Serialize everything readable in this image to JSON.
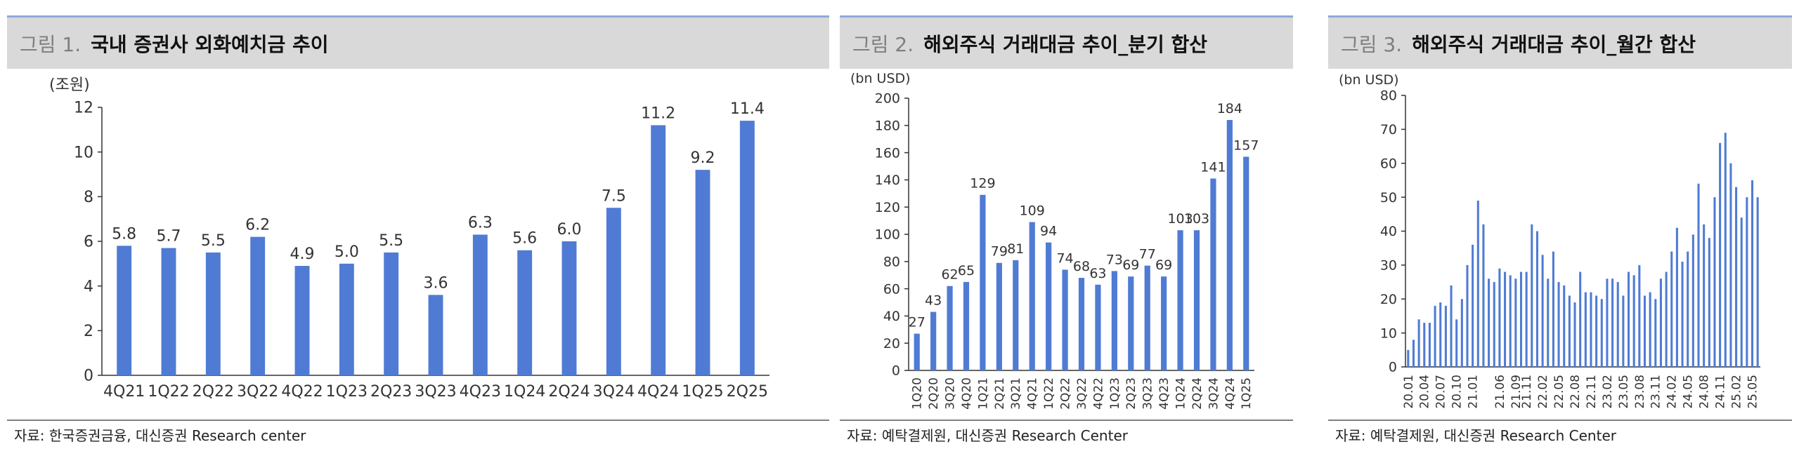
{
  "colors": {
    "bar": "#4f7bd4",
    "axis": "#333333"
  },
  "chart_data": [
    {
      "type": "bar",
      "fig_label": "그림 1.",
      "title": "국내 증권사 외화예치금 추이",
      "unit_label": "(조원)",
      "categories": [
        "4Q21",
        "1Q22",
        "2Q22",
        "3Q22",
        "4Q22",
        "1Q23",
        "2Q23",
        "3Q23",
        "4Q23",
        "1Q24",
        "2Q24",
        "3Q24",
        "4Q24",
        "1Q25",
        "2Q25"
      ],
      "tick_labels": [
        "4Q21",
        "1Q22",
        "2Q22",
        "3Q22",
        "4Q22",
        "1Q23",
        "2Q23",
        "3Q23",
        "4Q23",
        "1Q24",
        "2Q24",
        "3Q24",
        "4Q24",
        "1Q25",
        "2Q25"
      ],
      "values": [
        5.8,
        5.7,
        5.5,
        6.2,
        4.9,
        5.0,
        5.5,
        3.6,
        6.3,
        5.6,
        6.0,
        7.5,
        11.2,
        9.2,
        11.4
      ],
      "data_labels": [
        "5.8",
        "5.7",
        "5.5",
        "6.2",
        "4.9",
        "5.0",
        "5.5",
        "3.6",
        "6.3",
        "5.6",
        "6.0",
        "7.5",
        "11.2",
        "9.2",
        "11.4"
      ],
      "ylim": [
        0,
        12
      ],
      "yticks": [
        "0",
        "2",
        "4",
        "6",
        "8",
        "10",
        "12"
      ],
      "source": "자료: 한국증권금융, 대신증권 Research center"
    },
    {
      "type": "bar",
      "fig_label": "그림 2.",
      "title": "해외주식 거래대금 추이_분기 합산",
      "unit_label": "(bn USD)",
      "categories": [
        "1Q20",
        "2Q20",
        "3Q20",
        "4Q20",
        "1Q21",
        "2Q21",
        "3Q21",
        "4Q21",
        "1Q22",
        "2Q22",
        "3Q22",
        "4Q22",
        "1Q23",
        "2Q23",
        "3Q23",
        "4Q23",
        "1Q24",
        "2Q24",
        "3Q24",
        "4Q24",
        "1Q25"
      ],
      "tick_labels": [
        "1Q20",
        "2Q20",
        "3Q20",
        "4Q20",
        "1Q21",
        "2Q21",
        "3Q21",
        "4Q21",
        "1Q22",
        "2Q22",
        "3Q22",
        "4Q22",
        "1Q23",
        "2Q23",
        "3Q23",
        "4Q23",
        "1Q24",
        "2Q24",
        "3Q24",
        "4Q24",
        "1Q25"
      ],
      "values": [
        27,
        43,
        62,
        65,
        129,
        79,
        81,
        109,
        94,
        74,
        68,
        63,
        73,
        69,
        77,
        69,
        103,
        103,
        141,
        184,
        157
      ],
      "data_labels": [
        "27",
        "43",
        "62",
        "65",
        "129",
        "79",
        "81",
        "109",
        "94",
        "74",
        "68",
        "63",
        "73",
        "69",
        "77",
        "69",
        "103",
        "103",
        "141",
        "184",
        "157"
      ],
      "ylim": [
        0,
        200
      ],
      "yticks": [
        "0",
        "20",
        "40",
        "60",
        "80",
        "100",
        "120",
        "140",
        "160",
        "180",
        "200"
      ],
      "source": "자료: 예탁결제원, 대신증권 Research Center"
    },
    {
      "type": "bar",
      "fig_label": "그림 3.",
      "title": "해외주식 거래대금 추이_월간 합산",
      "unit_label": "(bn USD)",
      "categories": [
        "20.01",
        "20.02",
        "20.03",
        "20.04",
        "20.05",
        "20.06",
        "20.07",
        "20.08",
        "20.09",
        "20.10",
        "20.11",
        "20.12",
        "21.01",
        "21.02",
        "21.03",
        "21.04",
        "21.05",
        "21.06",
        "21.07",
        "21.08",
        "21.09",
        "21.10",
        "21.11",
        "21.12",
        "22.01",
        "22.02",
        "22.03",
        "22.04",
        "22.05",
        "22.06",
        "22.07",
        "22.08",
        "22.09",
        "22.10",
        "22.11",
        "22.12",
        "23.01",
        "23.02",
        "23.03",
        "23.04",
        "23.05",
        "23.06",
        "23.07",
        "23.08",
        "23.09",
        "23.10",
        "23.11",
        "23.12",
        "24.01",
        "24.02",
        "24.03",
        "24.04",
        "24.05",
        "24.06",
        "24.07",
        "24.08",
        "24.09",
        "24.10",
        "24.11",
        "24.12",
        "25.01",
        "25.02",
        "25.03",
        "25.04",
        "25.05",
        "25.06"
      ],
      "tick_labels": [
        "20.01",
        "20.04",
        "20.07",
        "20.10",
        "21.01",
        "21.06",
        "21.09",
        "21.11",
        "22.02",
        "22.05",
        "22.08",
        "22.11",
        "23.02",
        "23.05",
        "23.08",
        "23.11",
        "24.02",
        "24.05",
        "24.08",
        "24.11",
        "25.02",
        "25.05"
      ],
      "values": [
        5,
        8,
        14,
        13,
        13,
        18,
        19,
        18,
        24,
        14,
        20,
        30,
        36,
        49,
        42,
        26,
        25,
        29,
        28,
        27,
        26,
        28,
        28,
        42,
        40,
        33,
        26,
        34,
        25,
        24,
        21,
        19,
        28,
        22,
        22,
        21,
        20,
        26,
        26,
        25,
        21,
        28,
        27,
        30,
        21,
        22,
        20,
        26,
        28,
        34,
        41,
        31,
        34,
        39,
        54,
        42,
        38,
        50,
        66,
        69,
        60,
        53,
        44,
        50,
        55,
        50
      ],
      "ylim": [
        0,
        80
      ],
      "yticks": [
        "0",
        "10",
        "20",
        "30",
        "40",
        "50",
        "60",
        "70",
        "80"
      ],
      "source": "자료: 예탁결제원, 대신증권 Research Center"
    }
  ]
}
